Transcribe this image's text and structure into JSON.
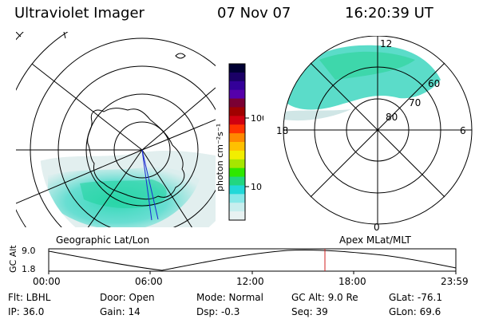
{
  "header": {
    "title": "Ultraviolet Imager",
    "date": "07 Nov 07",
    "time": "16:20:39 UT"
  },
  "colorbar": {
    "label": "photon cm⁻²s⁻¹",
    "ticks": [
      "100",
      "10"
    ],
    "colors": [
      "#000033",
      "#1a0066",
      "#330099",
      "#5500aa",
      "#7a0033",
      "#a00000",
      "#d00010",
      "#ff3300",
      "#ff8800",
      "#ffc000",
      "#f2ee00",
      "#a6e600",
      "#2ee800",
      "#22d680",
      "#22d8d8",
      "#88e8e8",
      "#c8eeee",
      "#e8f2f2"
    ]
  },
  "left_map": {
    "label": "Geographic Lat/Lon"
  },
  "right_map": {
    "label": "Apex MLat/MLT",
    "mlt_labels": {
      "top": "12",
      "left": "18",
      "right": "6",
      "bottom": "0"
    },
    "mlat_labels": [
      "60",
      "70",
      "80"
    ]
  },
  "altitude_plot": {
    "ylabel": "GC Alt",
    "yticks": [
      "9.0",
      "1.8"
    ],
    "xticks": [
      "00:00",
      "06:00",
      "12:00",
      "18:00",
      "23:59"
    ]
  },
  "info": {
    "filter": "Flt: LBHL",
    "door": "Door: Open",
    "mode": "Mode: Normal",
    "gc_alt": "GC Alt: 9.0 Re",
    "glat": "GLat: -76.1",
    "ip": "IP: 36.0",
    "gain": "Gain: 14",
    "dsp": "Dsp:    -0.3",
    "seq": "Seq: 39",
    "glon": "GLon:  69.6"
  }
}
